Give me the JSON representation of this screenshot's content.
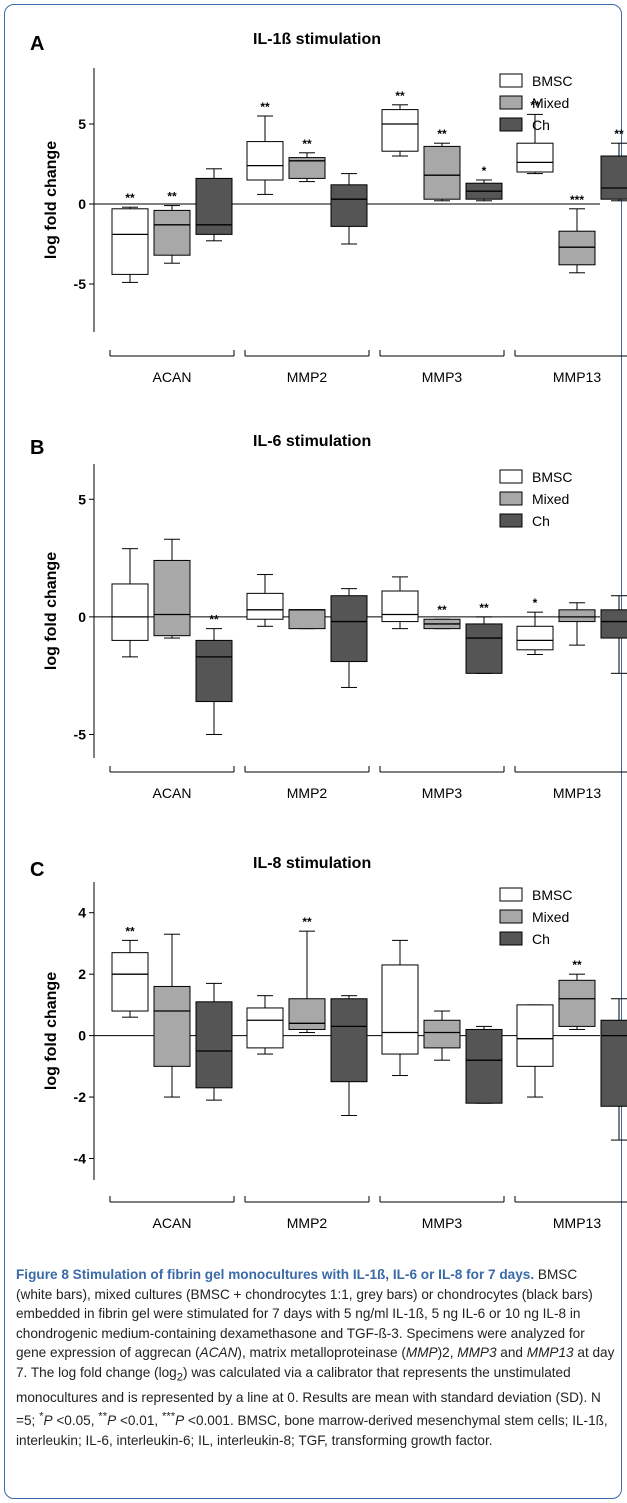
{
  "figure": {
    "caption_title": "Figure 8 Stimulation of fibrin gel monocultures with IL-1ß, IL-6 or IL-8 for 7 days.",
    "caption_body": "BMSC (white bars), mixed cultures (BMSC + chondrocytes 1:1, grey bars) or chondrocytes (black bars) embedded in fibrin gel were stimulated for 7 days with 5 ng/ml IL-1ß, 5 ng IL-6 or 10 ng IL-8 in chondrogenic medium-containing dexamethasone and TGF-ß-3. Specimens were analyzed for gene expression of aggrecan (<i>ACAN</i>), matrix metalloproteinase (<i>MMP</i>)2, <i>MMP3</i> and <i>MMP13</i> at day 7. The log fold change (log<sub>2</sub>) was calculated via a calibrator that represents the unstimulated monocultures and is represented by a line at 0. Results are mean with standard deviation (SD). N =5; <sup>*</sup><i>P</i> &lt;0.05, <sup>**</sup><i>P</i> &lt;0.01, <sup>***</sup><i>P</i> &lt;0.001. BMSC, bone marrow-derived mesenchymal stem cells; IL-1ß, interleukin; IL-6, interleukin-6; IL, interleukin-8; TGF, transforming growth factor."
  },
  "chart_data": [
    {
      "type": "box",
      "panel": "A",
      "title": "IL-1ß stimulation",
      "ylabel": "log fold change",
      "ylim": [
        -8,
        8.5
      ],
      "yticks": [
        5,
        0,
        -5
      ],
      "categories": [
        "ACAN",
        "MMP2",
        "MMP3",
        "MMP13"
      ],
      "legend": [
        "BMSC",
        "Mixed",
        "Ch"
      ],
      "colors": {
        "BMSC": "#ffffff",
        "Mixed": "#a8a8a8",
        "Ch": "#555555"
      },
      "series": [
        {
          "name": "BMSC",
          "boxes": [
            {
              "min": -4.9,
              "q1": -4.4,
              "median": -1.9,
              "q3": -0.3,
              "max": -0.2,
              "sig": "**"
            },
            {
              "min": 0.6,
              "q1": 1.5,
              "median": 2.4,
              "q3": 3.9,
              "max": 5.5,
              "sig": "**"
            },
            {
              "min": 3.0,
              "q1": 3.3,
              "median": 5.0,
              "q3": 5.9,
              "max": 6.2,
              "sig": "**"
            },
            {
              "min": 1.9,
              "q1": 2.0,
              "median": 2.6,
              "q3": 3.8,
              "max": 5.6,
              "sig": "**"
            }
          ]
        },
        {
          "name": "Mixed",
          "boxes": [
            {
              "min": -3.7,
              "q1": -3.2,
              "median": -1.3,
              "q3": -0.4,
              "max": -0.1,
              "sig": "**"
            },
            {
              "min": 1.4,
              "q1": 1.6,
              "median": 2.7,
              "q3": 2.9,
              "max": 3.2,
              "sig": "**"
            },
            {
              "min": 0.2,
              "q1": 0.3,
              "median": 1.8,
              "q3": 3.6,
              "max": 3.8,
              "sig": "**"
            },
            {
              "min": -4.3,
              "q1": -3.8,
              "median": -2.7,
              "q3": -1.7,
              "max": -0.3,
              "sig": "***"
            }
          ]
        },
        {
          "name": "Ch",
          "boxes": [
            {
              "min": -2.3,
              "q1": -1.9,
              "median": -1.3,
              "q3": 1.6,
              "max": 2.2,
              "sig": ""
            },
            {
              "min": -2.5,
              "q1": -1.4,
              "median": 0.3,
              "q3": 1.2,
              "max": 1.9,
              "sig": ""
            },
            {
              "min": 0.2,
              "q1": 0.3,
              "median": 0.8,
              "q3": 1.3,
              "max": 1.5,
              "sig": "*"
            },
            {
              "min": 0.2,
              "q1": 0.3,
              "median": 1.0,
              "q3": 3.0,
              "max": 3.8,
              "sig": "**"
            }
          ]
        }
      ]
    },
    {
      "type": "box",
      "panel": "B",
      "title": "IL-6 stimulation",
      "ylabel": "log fold change",
      "ylim": [
        -6,
        6.5
      ],
      "yticks": [
        5,
        0,
        -5
      ],
      "categories": [
        "ACAN",
        "MMP2",
        "MMP3",
        "MMP13"
      ],
      "legend": [
        "BMSC",
        "Mixed",
        "Ch"
      ],
      "colors": {
        "BMSC": "#ffffff",
        "Mixed": "#a8a8a8",
        "Ch": "#555555"
      },
      "series": [
        {
          "name": "BMSC",
          "boxes": [
            {
              "min": -1.7,
              "q1": -1.0,
              "median": 0.0,
              "q3": 1.4,
              "max": 2.9,
              "sig": ""
            },
            {
              "min": -0.4,
              "q1": -0.1,
              "median": 0.3,
              "q3": 1.0,
              "max": 1.8,
              "sig": ""
            },
            {
              "min": -0.5,
              "q1": -0.2,
              "median": 0.1,
              "q3": 1.1,
              "max": 1.7,
              "sig": ""
            },
            {
              "min": -1.6,
              "q1": -1.4,
              "median": -1.0,
              "q3": -0.4,
              "max": 0.2,
              "sig": "*"
            }
          ]
        },
        {
          "name": "Mixed",
          "boxes": [
            {
              "min": -0.9,
              "q1": -0.8,
              "median": 0.1,
              "q3": 2.4,
              "max": 3.3,
              "sig": ""
            },
            {
              "min": -0.5,
              "q1": -0.5,
              "median": 0.3,
              "q3": 0.3,
              "max": 0.3,
              "sig": ""
            },
            {
              "min": -0.5,
              "q1": -0.5,
              "median": -0.3,
              "q3": -0.1,
              "max": -0.1,
              "sig": "**"
            },
            {
              "min": -1.2,
              "q1": -0.2,
              "median": 0.0,
              "q3": 0.3,
              "max": 0.6,
              "sig": ""
            }
          ]
        },
        {
          "name": "Ch",
          "boxes": [
            {
              "min": -5.0,
              "q1": -3.6,
              "median": -1.7,
              "q3": -1.0,
              "max": -0.5,
              "sig": "**"
            },
            {
              "min": -3.0,
              "q1": -1.9,
              "median": -0.2,
              "q3": 0.9,
              "max": 1.2,
              "sig": ""
            },
            {
              "min": -2.4,
              "q1": -2.4,
              "median": -0.9,
              "q3": -0.3,
              "max": 0.0,
              "sig": "**"
            },
            {
              "min": -2.4,
              "q1": -0.9,
              "median": -0.2,
              "q3": 0.3,
              "max": 0.9,
              "sig": ""
            }
          ]
        }
      ]
    },
    {
      "type": "box",
      "panel": "C",
      "title": "IL-8 stimulation",
      "ylabel": "log fold change",
      "ylim": [
        -4.7,
        5.0
      ],
      "yticks": [
        4,
        2,
        0,
        -2,
        -4
      ],
      "categories": [
        "ACAN",
        "MMP2",
        "MMP3",
        "MMP13"
      ],
      "legend": [
        "BMSC",
        "Mixed",
        "Ch"
      ],
      "colors": {
        "BMSC": "#ffffff",
        "Mixed": "#a8a8a8",
        "Ch": "#555555"
      },
      "series": [
        {
          "name": "BMSC",
          "boxes": [
            {
              "min": 0.6,
              "q1": 0.8,
              "median": 2.0,
              "q3": 2.7,
              "max": 3.1,
              "sig": "**"
            },
            {
              "min": -0.6,
              "q1": -0.4,
              "median": 0.5,
              "q3": 0.9,
              "max": 1.3,
              "sig": ""
            },
            {
              "min": -1.3,
              "q1": -0.6,
              "median": 0.1,
              "q3": 2.3,
              "max": 3.1,
              "sig": ""
            },
            {
              "min": -2.0,
              "q1": -1.0,
              "median": -0.1,
              "q3": 1.0,
              "max": 1.0,
              "sig": ""
            }
          ]
        },
        {
          "name": "Mixed",
          "boxes": [
            {
              "min": -2.0,
              "q1": -1.0,
              "median": 0.8,
              "q3": 1.6,
              "max": 3.3,
              "sig": ""
            },
            {
              "min": 0.1,
              "q1": 0.2,
              "median": 0.4,
              "q3": 1.2,
              "max": 3.4,
              "sig": "**"
            },
            {
              "min": -0.8,
              "q1": -0.4,
              "median": 0.1,
              "q3": 0.5,
              "max": 0.8,
              "sig": ""
            },
            {
              "min": 0.2,
              "q1": 0.3,
              "median": 1.2,
              "q3": 1.8,
              "max": 2.0,
              "sig": "**"
            }
          ]
        },
        {
          "name": "Ch",
          "boxes": [
            {
              "min": -2.1,
              "q1": -1.7,
              "median": -0.5,
              "q3": 1.1,
              "max": 1.7,
              "sig": ""
            },
            {
              "min": -2.6,
              "q1": -1.5,
              "median": 0.3,
              "q3": 1.2,
              "max": 1.3,
              "sig": ""
            },
            {
              "min": -2.2,
              "q1": -2.2,
              "median": -0.8,
              "q3": 0.2,
              "max": 0.3,
              "sig": ""
            },
            {
              "min": -3.4,
              "q1": -2.3,
              "median": 0.0,
              "q3": 0.5,
              "max": 1.2,
              "sig": ""
            }
          ]
        }
      ]
    }
  ]
}
